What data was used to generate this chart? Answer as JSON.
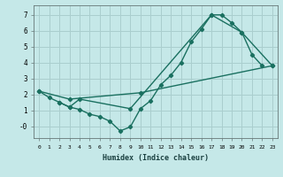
{
  "xlabel": "Humidex (Indice chaleur)",
  "bg_color": "#c5e8e8",
  "grid_color": "#aacece",
  "line_color": "#1a7060",
  "xlim": [
    -0.5,
    23.5
  ],
  "ylim": [
    -0.75,
    7.6
  ],
  "xticks": [
    0,
    1,
    2,
    3,
    4,
    5,
    6,
    7,
    8,
    9,
    10,
    11,
    12,
    13,
    14,
    15,
    16,
    17,
    18,
    19,
    20,
    21,
    22,
    23
  ],
  "yticks": [
    0,
    1,
    2,
    3,
    4,
    5,
    6,
    7
  ],
  "ytick_labels": [
    "-0",
    "1",
    "2",
    "3",
    "4",
    "5",
    "6",
    "7"
  ],
  "line1_x": [
    0,
    1,
    2,
    3,
    4,
    5,
    6,
    7,
    8,
    9,
    10,
    11,
    12,
    13,
    14,
    15,
    16,
    17,
    18,
    19,
    20,
    21,
    22
  ],
  "line1_y": [
    2.2,
    1.8,
    1.5,
    1.2,
    1.05,
    0.75,
    0.6,
    0.3,
    -0.3,
    -0.05,
    1.1,
    1.6,
    2.6,
    3.2,
    4.0,
    5.3,
    6.1,
    7.0,
    7.0,
    6.5,
    5.9,
    4.5,
    3.8
  ],
  "line2_x": [
    0,
    3,
    10,
    23
  ],
  "line2_y": [
    2.2,
    1.7,
    2.1,
    3.8
  ],
  "line3_x": [
    2,
    3,
    4,
    9,
    17,
    20,
    23
  ],
  "line3_y": [
    1.5,
    1.2,
    1.7,
    1.1,
    7.0,
    5.9,
    3.8
  ]
}
